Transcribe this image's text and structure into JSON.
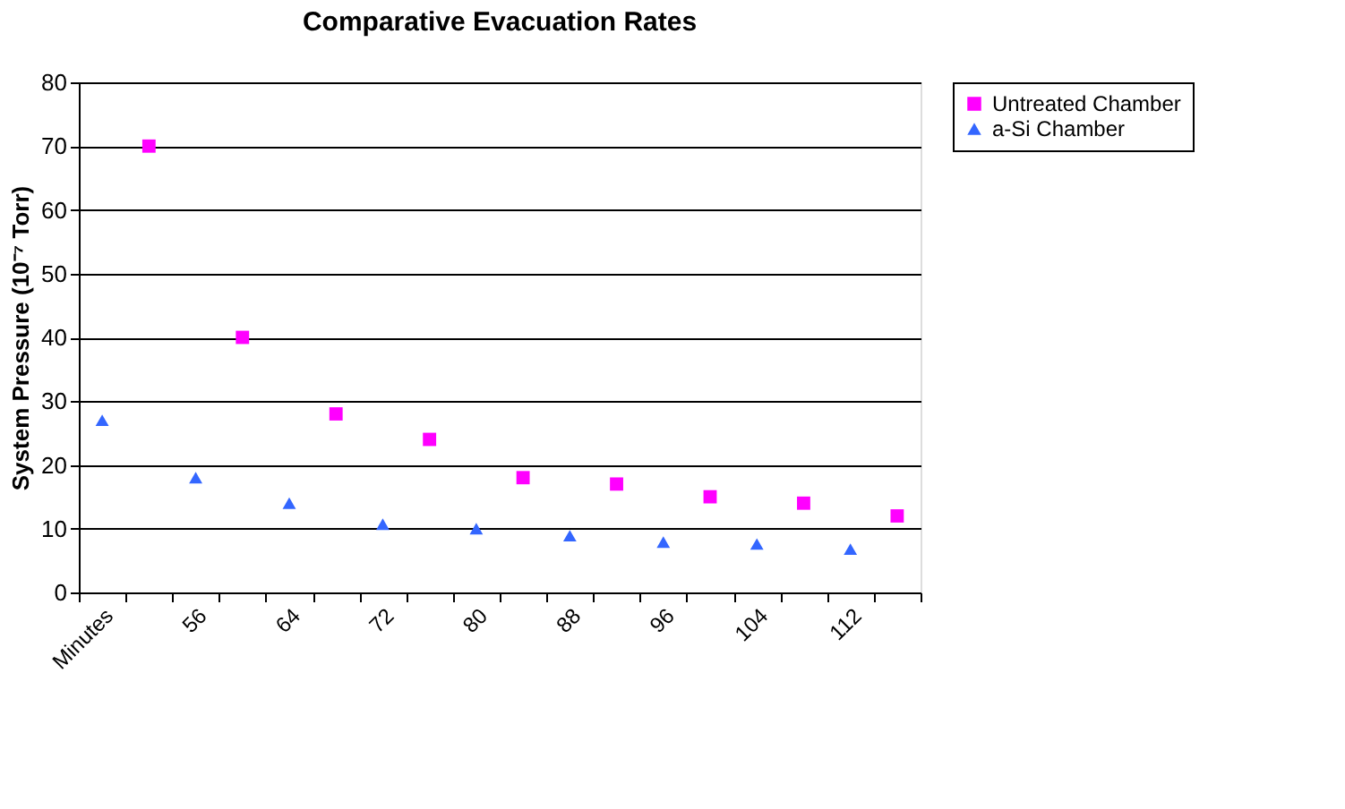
{
  "chart_data": {
    "type": "scatter",
    "title": "Comparative Evacuation Rates",
    "ylabel": "System Pressure (10⁻⁷ Torr)",
    "categories": [
      "Minutes",
      null,
      "56",
      null,
      "64",
      null,
      "72",
      null,
      "80",
      null,
      "88",
      null,
      "96",
      null,
      "104",
      null,
      "112",
      null
    ],
    "series": [
      {
        "name": "Untreated Chamber",
        "color": "#ff00ff",
        "marker": "square",
        "values": [
          null,
          70,
          null,
          40,
          null,
          28,
          null,
          24,
          null,
          18,
          null,
          17,
          null,
          15,
          null,
          14,
          null,
          12
        ]
      },
      {
        "name": "a-Si Chamber",
        "color": "#3366ff",
        "marker": "triangle",
        "values": [
          27,
          null,
          18,
          null,
          14,
          null,
          10.7,
          null,
          10,
          null,
          8.9,
          null,
          7.9,
          null,
          7.6,
          null,
          6.8,
          null
        ]
      }
    ],
    "ylim": [
      0,
      80
    ],
    "yticks": [
      0,
      10,
      20,
      30,
      40,
      50,
      60,
      70,
      80
    ],
    "grid": "y",
    "legend": "right"
  }
}
